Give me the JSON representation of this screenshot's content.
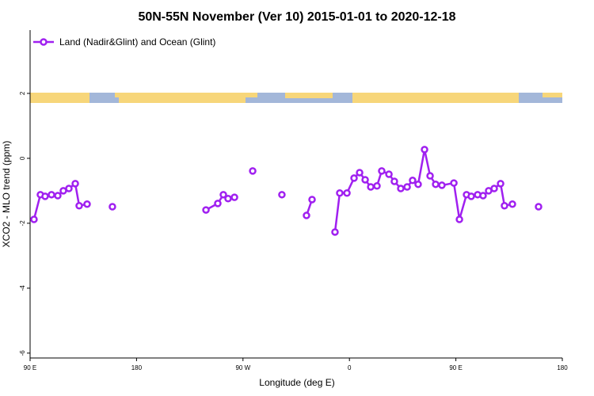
{
  "chart_data": {
    "type": "line",
    "title": "50N-55N November (Ver 10)   2015-01-01 to 2020-12-18",
    "x_label": "Longitude (deg E)",
    "y_label": "XCO2 - MLO trend (ppm)",
    "xlim": [
      90,
      540
    ],
    "ylim": [
      -6.15,
      3.95
    ],
    "xticks": [
      {
        "value": 90,
        "label": "90 E"
      },
      180,
      {
        "value": 270,
        "label": "90 W"
      },
      {
        "value": 360,
        "label": "0"
      },
      {
        "value": 450,
        "label": "90 E"
      },
      {
        "value": 540,
        "label": "180"
      }
    ],
    "yticks": [
      -6,
      -4,
      -2,
      0,
      2
    ],
    "legend_position": "top-left",
    "series": [
      {
        "name": "Land (Nadir&Glint) and Ocean (Glint)",
        "color": "#a020f0",
        "x": [
          93.3,
          98.7,
          102.7,
          108.1,
          113.4,
          118.1,
          122.8,
          128.2,
          131.5,
          138.2,
          null,
          159.6,
          null,
          238.7,
          248.7,
          253.4,
          257.4,
          262.8,
          null,
          278.2,
          null,
          302.9,
          null,
          323.7,
          328.4,
          null,
          347.8,
          351.8,
          357.9,
          363.9,
          368.6,
          373.3,
          378.0,
          383.3,
          387.3,
          393.4,
          398.0,
          403.4,
          408.8,
          413.4,
          418.1,
          423.5,
          428.2,
          432.9,
          438.2,
          448.3,
          453.0,
          459.0,
          463.0,
          468.4,
          473.0,
          477.7,
          482.4,
          487.8,
          491.1,
          497.8,
          null,
          519.9
        ],
        "values": [
          -1.88,
          -1.12,
          -1.17,
          -1.12,
          -1.15,
          -1.0,
          -0.93,
          -0.78,
          -1.46,
          -1.41,
          null,
          -1.49,
          null,
          -1.59,
          -1.39,
          -1.12,
          -1.24,
          -1.2,
          null,
          -0.39,
          null,
          -1.12,
          null,
          -1.76,
          -1.27,
          null,
          -2.27,
          -1.07,
          -1.07,
          -0.61,
          -0.44,
          -0.66,
          -0.88,
          -0.85,
          -0.39,
          -0.49,
          -0.71,
          -0.93,
          -0.88,
          -0.68,
          -0.8,
          0.27,
          -0.54,
          -0.8,
          -0.83,
          -0.76,
          -1.88,
          -1.12,
          -1.17,
          -1.12,
          -1.15,
          -1.0,
          -0.93,
          -0.78,
          -1.46,
          -1.41,
          null,
          -1.49
        ]
      }
    ]
  }
}
